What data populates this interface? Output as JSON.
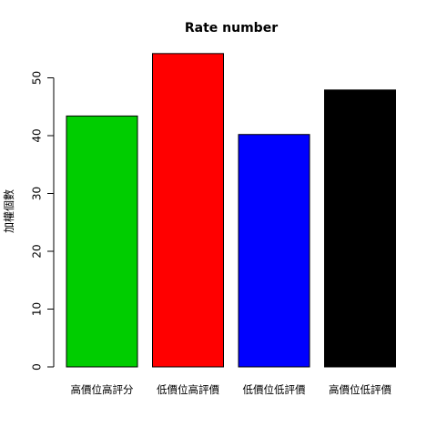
{
  "chart_data": {
    "type": "bar",
    "title": "Rate number",
    "xlabel": "",
    "ylabel": "加權個數",
    "categories": [
      "高價位高評分",
      "低價位高評價",
      "低價位低評價",
      "高價位低評價"
    ],
    "values": [
      43.4,
      54.2,
      40.2,
      47.9
    ],
    "colors": [
      "#00cd00",
      "#ff0000",
      "#0000ff",
      "#000000"
    ],
    "ylim": [
      0,
      55
    ],
    "yticks": [
      0,
      10,
      20,
      30,
      40,
      50
    ],
    "grid": false
  }
}
